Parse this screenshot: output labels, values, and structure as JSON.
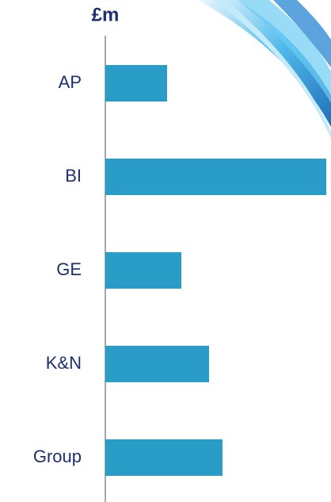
{
  "chart_data": {
    "type": "barh",
    "title": "£m",
    "categories": [
      "AP",
      "BI",
      "GE",
      "K&N",
      "Group"
    ],
    "values": [
      78,
      279,
      96,
      131,
      148
    ],
    "color": "#2a9cc8",
    "xlim": [
      0,
      280
    ]
  }
}
